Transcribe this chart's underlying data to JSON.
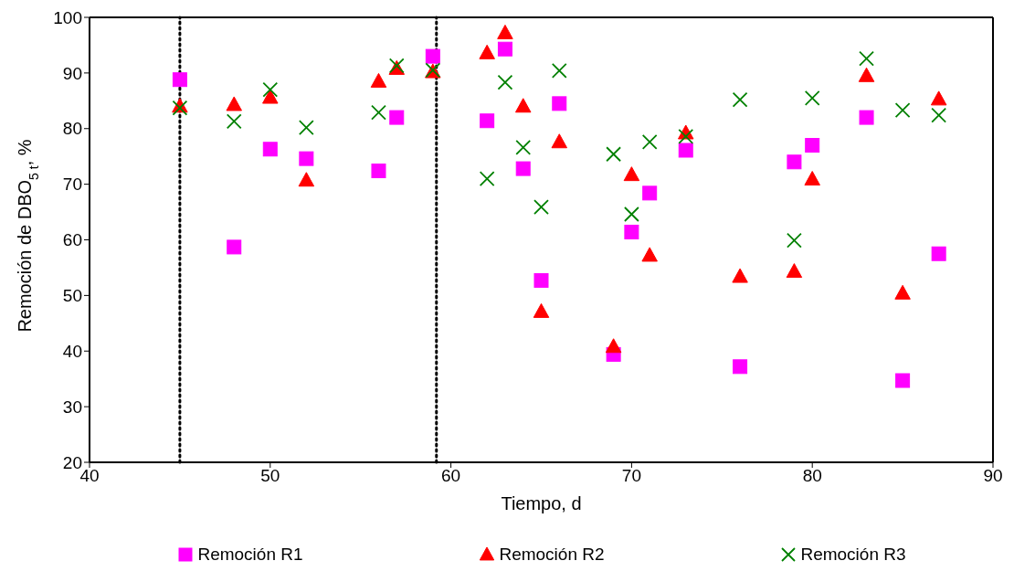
{
  "chart_data": {
    "type": "scatter",
    "xlabel": "Tiempo, d",
    "ylabel": "Remoción de DBO$_{5 t}$, %",
    "xlim": [
      40,
      90
    ],
    "xticks": [
      40,
      50,
      60,
      70,
      80,
      90
    ],
    "ylim": [
      20,
      100
    ],
    "yticks": [
      20,
      30,
      40,
      50,
      60,
      70,
      80,
      90,
      100
    ],
    "legend": "bottom",
    "x": [
      45,
      48,
      50,
      52,
      56,
      57,
      59,
      62,
      63,
      64,
      65,
      66,
      69,
      70,
      71,
      73,
      76,
      79,
      80,
      83,
      85,
      87
    ],
    "series": [
      {
        "name": "Remoción R1",
        "color": "#ff00ff",
        "marker": "square",
        "values": [
          88.8,
          58.7,
          76.3,
          74.6,
          72.4,
          82.0,
          93.0,
          81.4,
          94.3,
          72.8,
          52.7,
          84.5,
          39.4,
          61.4,
          68.4,
          76.1,
          37.2,
          74.0,
          77.0,
          82.0,
          34.7,
          57.5
        ]
      },
      {
        "name": "Remoción R2",
        "color": "#ff0000",
        "marker": "triangle",
        "values": [
          84.0,
          84.3,
          85.6,
          70.7,
          88.5,
          90.8,
          90.2,
          93.6,
          97.2,
          84.0,
          47.1,
          77.6,
          40.8,
          71.7,
          57.2,
          79.2,
          53.4,
          54.3,
          70.9,
          89.5,
          50.4,
          85.3
        ]
      },
      {
        "name": "Remoción R3",
        "color": "#008000",
        "marker": "cross",
        "values": [
          83.7,
          81.3,
          87.0,
          80.2,
          82.9,
          91.3,
          90.5,
          71.0,
          88.3,
          76.6,
          65.9,
          90.4,
          75.4,
          64.6,
          77.6,
          78.6,
          85.2,
          59.9,
          85.5,
          92.6,
          83.3,
          82.4
        ]
      }
    ],
    "ref_lines": [
      {
        "axis": "x",
        "value": 45,
        "color": "#000000",
        "line_style": "dotted"
      },
      {
        "axis": "x",
        "value": 59.2,
        "color": "#000000",
        "line_style": "dotted"
      }
    ]
  }
}
